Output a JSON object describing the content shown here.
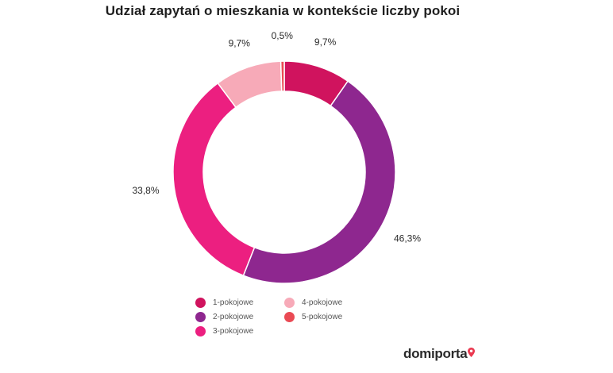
{
  "chart_data": {
    "type": "pie",
    "style": "donut",
    "title": "Udział zapytań o mieszkania w kontekście liczby pokoi",
    "categories": [
      "1-pokojowe",
      "2-pokojowe",
      "3-pokojowe",
      "4-pokojowe",
      "5-pokojowe"
    ],
    "values": [
      9.7,
      46.3,
      33.8,
      9.7,
      0.5
    ],
    "value_labels": [
      "9,7%",
      "46,3%",
      "33,8%",
      "9,7%",
      "0,5%"
    ],
    "colors": [
      "#d0135e",
      "#8e278f",
      "#ec1f80",
      "#f7aab8",
      "#ea4a54"
    ],
    "legend_position": "bottom",
    "legend_order": [
      0,
      3,
      1,
      4,
      2
    ]
  },
  "brand": {
    "name": "domiporta",
    "pin_color": "#ea3950"
  }
}
